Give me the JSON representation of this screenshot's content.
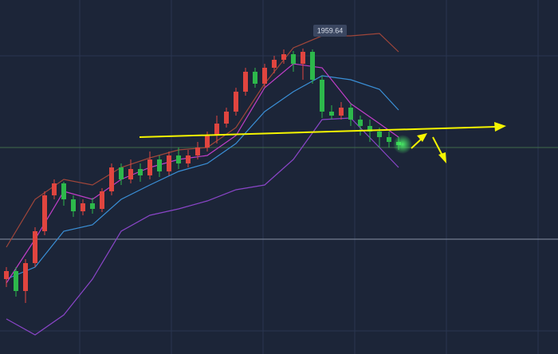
{
  "chart_data": {
    "type": "candlestick",
    "annotation": "1959.64",
    "ylim": [
      1806.4,
      1984
    ],
    "up_color": "#e0453f",
    "down_color": "#2db84b",
    "price_lines": [
      1910,
      1864
    ],
    "candles": [
      [
        1844,
        1850,
        1840,
        1848
      ],
      [
        1848,
        1850,
        1835.2,
        1838
      ],
      [
        1838,
        1854,
        1832,
        1852
      ],
      [
        1852,
        1870,
        1850,
        1868
      ],
      [
        1868,
        1888,
        1866,
        1886
      ],
      [
        1886,
        1894,
        1884,
        1892
      ],
      [
        1892,
        1892.8,
        1880.8,
        1884
      ],
      [
        1884,
        1886,
        1875.2,
        1878
      ],
      [
        1878,
        1884,
        1876,
        1882
      ],
      [
        1882,
        1884.8,
        1876.8,
        1879.2
      ],
      [
        1879.2,
        1889.6,
        1877.6,
        1888
      ],
      [
        1888,
        1902,
        1886,
        1900
      ],
      [
        1900,
        1902,
        1891.2,
        1894
      ],
      [
        1894,
        1904,
        1892,
        1899.2
      ],
      [
        1899.2,
        1902,
        1892.8,
        1896
      ],
      [
        1896,
        1908,
        1894,
        1904
      ],
      [
        1904,
        1906,
        1895.2,
        1898
      ],
      [
        1898,
        1908,
        1896,
        1906
      ],
      [
        1906,
        1910,
        1899.2,
        1902
      ],
      [
        1902,
        1908.8,
        1900,
        1906
      ],
      [
        1906,
        1912.8,
        1904,
        1910
      ],
      [
        1910,
        1918,
        1908,
        1916
      ],
      [
        1916,
        1926,
        1912,
        1922
      ],
      [
        1922,
        1930,
        1920,
        1928
      ],
      [
        1928,
        1940,
        1926,
        1938
      ],
      [
        1938,
        1950,
        1936,
        1948
      ],
      [
        1948,
        1950,
        1940,
        1942
      ],
      [
        1942,
        1952,
        1940,
        1950
      ],
      [
        1950,
        1956,
        1947.2,
        1954
      ],
      [
        1954,
        1959.2,
        1952,
        1956.8
      ],
      [
        1956.8,
        1958.4,
        1948,
        1952
      ],
      [
        1952,
        1959.64,
        1944,
        1958
      ],
      [
        1958,
        1959.2,
        1942,
        1944
      ],
      [
        1944,
        1946,
        1924.8,
        1928
      ],
      [
        1928,
        1931.2,
        1924,
        1926
      ],
      [
        1926,
        1932.8,
        1924,
        1930
      ],
      [
        1930,
        1932,
        1920.8,
        1924
      ],
      [
        1924,
        1926,
        1916,
        1920.8
      ],
      [
        1920.8,
        1924,
        1912.8,
        1918
      ],
      [
        1918,
        1920,
        1910,
        1915.2
      ],
      [
        1915.2,
        1918,
        1910,
        1912.8
      ],
      [
        1912.8,
        1915.2,
        1908.8,
        1911.2
      ]
    ],
    "series": [
      {
        "color": "#a0463a",
        "x": [
          0,
          3,
          6,
          9,
          12,
          15,
          18,
          21,
          24,
          27,
          30,
          33,
          36,
          39,
          41
        ],
        "values": [
          1860,
          1884,
          1894,
          1891.2,
          1900,
          1904.8,
          1908.8,
          1910,
          1920,
          1942,
          1960,
          1966,
          1966,
          1967.2,
          1958
        ]
      },
      {
        "color": "#3a8fd6",
        "x": [
          0,
          3,
          6,
          9,
          12,
          15,
          18,
          21,
          24,
          27,
          30,
          33,
          36,
          39,
          41
        ],
        "values": [
          1844,
          1850,
          1868,
          1871.2,
          1884,
          1891.2,
          1898,
          1902,
          1912,
          1928,
          1938,
          1946,
          1944,
          1939.2,
          1928.8
        ]
      },
      {
        "color": "#8a45c8",
        "x": [
          0,
          3,
          6,
          9,
          12,
          15,
          18,
          21,
          24,
          27,
          30,
          33,
          36,
          39,
          41
        ],
        "values": [
          1824,
          1816,
          1826,
          1844,
          1868,
          1876,
          1879.2,
          1883.2,
          1888.8,
          1891.2,
          1904,
          1924,
          1924.8,
          1910,
          1900
        ]
      },
      {
        "color": "#c03ec8",
        "x": [
          0,
          3,
          6,
          9,
          12,
          15,
          18,
          21,
          24,
          27,
          30,
          33,
          36,
          39,
          41
        ],
        "values": [
          1842,
          1864,
          1888,
          1884,
          1894,
          1900,
          1904,
          1906,
          1916,
          1940,
          1952,
          1950,
          1932,
          1922,
          1915.2
        ]
      }
    ]
  }
}
